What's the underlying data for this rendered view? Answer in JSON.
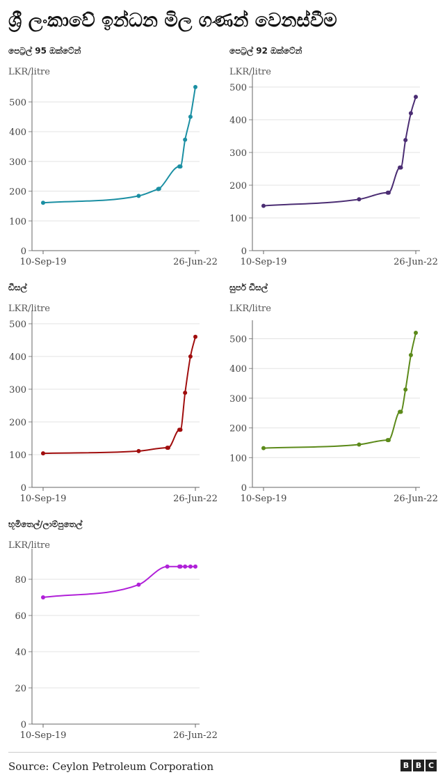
{
  "title": "ශ්‍රී ලංකාවේ ඉන්ධන මිල ගණන් වෙනස්වීම",
  "source": "Source: Ceylon Petroleum Corporation",
  "logo_letters": [
    "B",
    "B",
    "C"
  ],
  "chart_data": [
    {
      "type": "line",
      "title": "පෙට්‍රල් 95 ඔක්ටේන්",
      "ylabel": "LKR/litre",
      "color": "#1b8fa3",
      "ylim": [
        0,
        550
      ],
      "yticks": [
        0,
        100,
        200,
        300,
        400,
        500
      ],
      "xlim": [
        "2019-09-10",
        "2022-06-26"
      ],
      "xticks": [
        "10-Sep-19",
        "26-Jun-22"
      ],
      "x": [
        "2019-09-10",
        "2021-06-11",
        "2021-10-20",
        "2021-10-26",
        "2022-03-11",
        "2022-03-18",
        "2022-04-18",
        "2022-05-24",
        "2022-06-26"
      ],
      "values": [
        161,
        184,
        207,
        208,
        283,
        283,
        373,
        450,
        550
      ]
    },
    {
      "type": "line",
      "title": "පෙට්‍රල් 92 ඔක්ටේන්",
      "ylabel": "LKR/litre",
      "color": "#4b2d73",
      "ylim": [
        0,
        500
      ],
      "yticks": [
        0,
        100,
        200,
        300,
        400,
        500
      ],
      "xlim": [
        "2019-09-10",
        "2022-06-26"
      ],
      "xticks": [
        "10-Sep-19",
        "26-Jun-22"
      ],
      "x": [
        "2019-09-10",
        "2021-06-11",
        "2021-12-20",
        "2021-12-26",
        "2022-03-11",
        "2022-03-18",
        "2022-04-18",
        "2022-05-24",
        "2022-06-26"
      ],
      "values": [
        137,
        157,
        177,
        177,
        254,
        254,
        338,
        420,
        470
      ]
    },
    {
      "type": "line",
      "title": "ඩීසල්",
      "ylabel": "LKR/litre",
      "color": "#a00d0d",
      "ylim": [
        0,
        500
      ],
      "yticks": [
        0,
        100,
        200,
        300,
        400,
        500
      ],
      "xlim": [
        "2019-09-10",
        "2022-06-26"
      ],
      "xticks": [
        "10-Sep-19",
        "26-Jun-22"
      ],
      "x": [
        "2019-09-10",
        "2021-06-11",
        "2021-12-20",
        "2021-12-26",
        "2022-03-11",
        "2022-03-18",
        "2022-04-18",
        "2022-05-24",
        "2022-06-26"
      ],
      "values": [
        104,
        111,
        121,
        121,
        176,
        176,
        289,
        400,
        460
      ]
    },
    {
      "type": "line",
      "title": "සුපර් ඩීසල්",
      "ylabel": "LKR/litre",
      "color": "#5c8a1a",
      "ylim": [
        0,
        520
      ],
      "yticks": [
        0,
        100,
        200,
        300,
        400,
        500
      ],
      "xlim": [
        "2019-09-10",
        "2022-06-26"
      ],
      "xticks": [
        "10-Sep-19",
        "26-Jun-22"
      ],
      "x": [
        "2019-09-10",
        "2021-06-11",
        "2021-12-20",
        "2021-12-26",
        "2022-03-11",
        "2022-03-18",
        "2022-04-18",
        "2022-05-24",
        "2022-06-26"
      ],
      "values": [
        132,
        144,
        159,
        159,
        254,
        254,
        329,
        445,
        520
      ]
    },
    {
      "type": "line",
      "title": "භූමිතෙල්/ලාම්පුතෙල්",
      "ylabel": "LKR/litre",
      "color": "#b020d8",
      "ylim": [
        0,
        90
      ],
      "yticks": [
        0,
        20,
        40,
        60,
        80
      ],
      "xlim": [
        "2019-09-10",
        "2022-06-26"
      ],
      "xticks": [
        "10-Sep-19",
        "26-Jun-22"
      ],
      "x": [
        "2019-09-10",
        "2021-06-11",
        "2021-12-20",
        "2022-03-11",
        "2022-03-18",
        "2022-04-18",
        "2022-05-24",
        "2022-06-26"
      ],
      "values": [
        70,
        77,
        87,
        87,
        87,
        87,
        87,
        87
      ]
    }
  ]
}
